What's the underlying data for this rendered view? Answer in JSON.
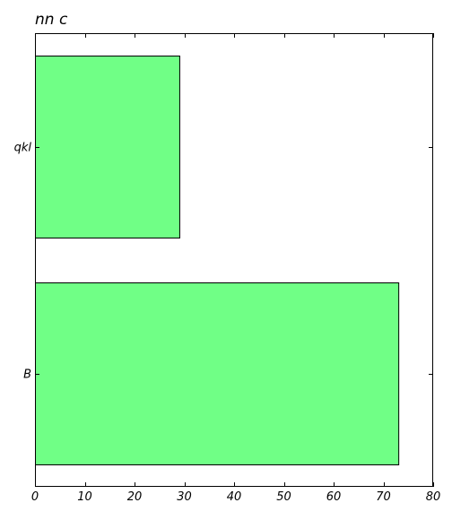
{
  "chart_data": {
    "type": "bar",
    "orientation": "horizontal",
    "title": "nn c",
    "xlabel": "",
    "ylabel": "",
    "categories": [
      "qkl",
      "B"
    ],
    "values": [
      29,
      73
    ],
    "xlim": [
      0,
      80
    ],
    "xticks": [
      0,
      10,
      20,
      30,
      40,
      50,
      60,
      70,
      80
    ],
    "grid": false,
    "legend": "none",
    "bar_color": "#70ff86",
    "bar_edge_color": "#000000"
  }
}
